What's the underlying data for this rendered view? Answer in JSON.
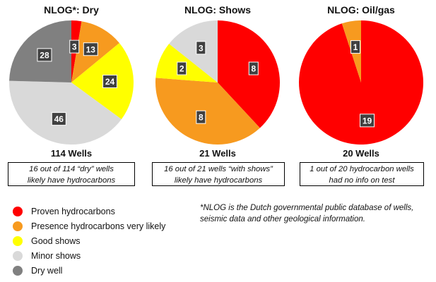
{
  "chart_data": [
    {
      "type": "pie",
      "title": "NLOG*: Dry",
      "categories": [
        "Proven hydrocarbons",
        "Presence hydrocarbons very likely",
        "Good shows",
        "Minor shows",
        "Dry well"
      ],
      "values": [
        3,
        13,
        24,
        46,
        28
      ],
      "total_label": "114 Wells",
      "note": [
        "16 out of 114 “dry” wells",
        "likely have hydrocarbons"
      ]
    },
    {
      "type": "pie",
      "title": "NLOG: Shows",
      "categories": [
        "Proven hydrocarbons",
        "Presence hydrocarbons very likely",
        "Good shows",
        "Minor shows"
      ],
      "values": [
        8,
        8,
        2,
        3
      ],
      "total_label": "21 Wells",
      "note": [
        "16 out of 21 wells “with shows”",
        "likely have hydrocarbons"
      ]
    },
    {
      "type": "pie",
      "title": "NLOG: Oil/gas",
      "categories": [
        "Proven hydrocarbons",
        "Presence hydrocarbons very likely"
      ],
      "values": [
        19,
        1
      ],
      "total_label": "20 Wells",
      "note": [
        "1 out of 20 hydrocarbon wells",
        "had no info on test"
      ]
    }
  ],
  "legend": [
    {
      "label": "Proven hydrocarbons",
      "color": "#ff0000"
    },
    {
      "label": "Presence hydrocarbons very likely",
      "color": "#f79a1f"
    },
    {
      "label": "Good shows",
      "color": "#ffff00"
    },
    {
      "label": "Minor shows",
      "color": "#d9d9d9"
    },
    {
      "label": "Dry well",
      "color": "#808080"
    }
  ],
  "colors": {
    "Proven hydrocarbons": "#ff0000",
    "Presence hydrocarbons very likely": "#f79a1f",
    "Good shows": "#ffff00",
    "Minor shows": "#d9d9d9",
    "Dry well": "#808080",
    "value_label_bg": "#404040",
    "value_label_text": "#ffffff"
  },
  "footnote": [
    "*NLOG is the Dutch governmental public database of wells,",
    "seismic data and other geological information."
  ]
}
